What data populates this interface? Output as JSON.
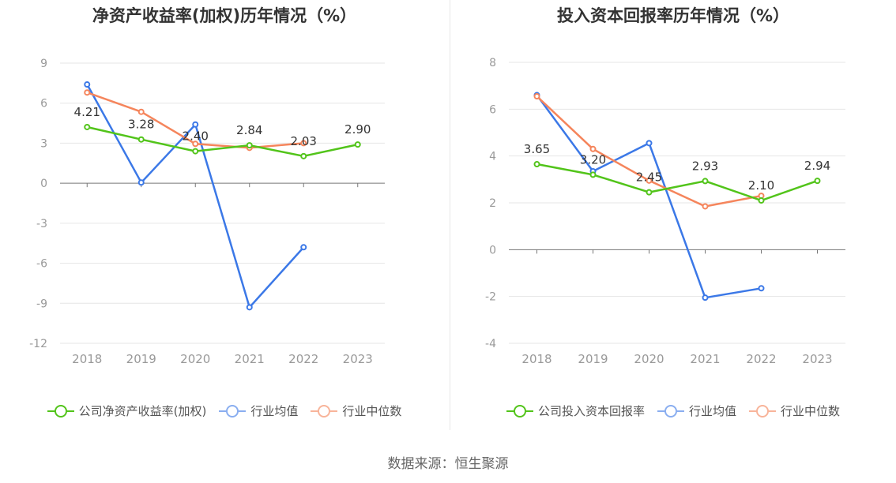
{
  "colors": {
    "company": "#52c41a",
    "industry_avg": "#3b78e7",
    "industry_median": "#f5855c",
    "legend_avg": "#8aaef0",
    "legend_median": "#f8b49a"
  },
  "chart_data": [
    {
      "type": "line",
      "title": "净资产收益率(加权)历年情况（%）",
      "categories": [
        "2018",
        "2019",
        "2020",
        "2021",
        "2022",
        "2023"
      ],
      "ylim": [
        -12,
        9
      ],
      "yticks": [
        9,
        6,
        3,
        0,
        -3,
        -6,
        -9,
        -12
      ],
      "grid": true,
      "legend_position": "bottom",
      "series": [
        {
          "name": "公司净资产收益率(加权)",
          "key": "company",
          "values": [
            4.21,
            3.28,
            2.4,
            2.84,
            2.03,
            2.9
          ],
          "labels": [
            "4.21",
            "3.28",
            "2.40",
            "2.84",
            "2.03",
            "2.90"
          ]
        },
        {
          "name": "行业均值",
          "key": "industry_avg",
          "values": [
            7.4,
            0.05,
            4.4,
            -9.3,
            -4.8,
            null
          ]
        },
        {
          "name": "行业中位数",
          "key": "industry_median",
          "values": [
            6.8,
            5.35,
            2.95,
            2.65,
            3.0,
            null
          ]
        }
      ]
    },
    {
      "type": "line",
      "title": "投入资本回报率历年情况（%）",
      "categories": [
        "2018",
        "2019",
        "2020",
        "2021",
        "2022",
        "2023"
      ],
      "ylim": [
        -4,
        8
      ],
      "yticks": [
        8,
        6,
        4,
        2,
        0,
        -2,
        -4
      ],
      "grid": true,
      "legend_position": "bottom",
      "series": [
        {
          "name": "公司投入资本回报率",
          "key": "company",
          "values": [
            3.65,
            3.2,
            2.45,
            2.93,
            2.1,
            2.94
          ],
          "labels": [
            "3.65",
            "3.20",
            "2.45",
            "2.93",
            "2.10",
            "2.94"
          ]
        },
        {
          "name": "行业均值",
          "key": "industry_avg",
          "values": [
            6.6,
            3.35,
            4.55,
            -2.05,
            -1.65,
            null
          ]
        },
        {
          "name": "行业中位数",
          "key": "industry_median",
          "values": [
            6.55,
            4.3,
            2.95,
            1.85,
            2.3,
            null
          ]
        }
      ]
    }
  ],
  "source": "数据来源：恒生聚源"
}
